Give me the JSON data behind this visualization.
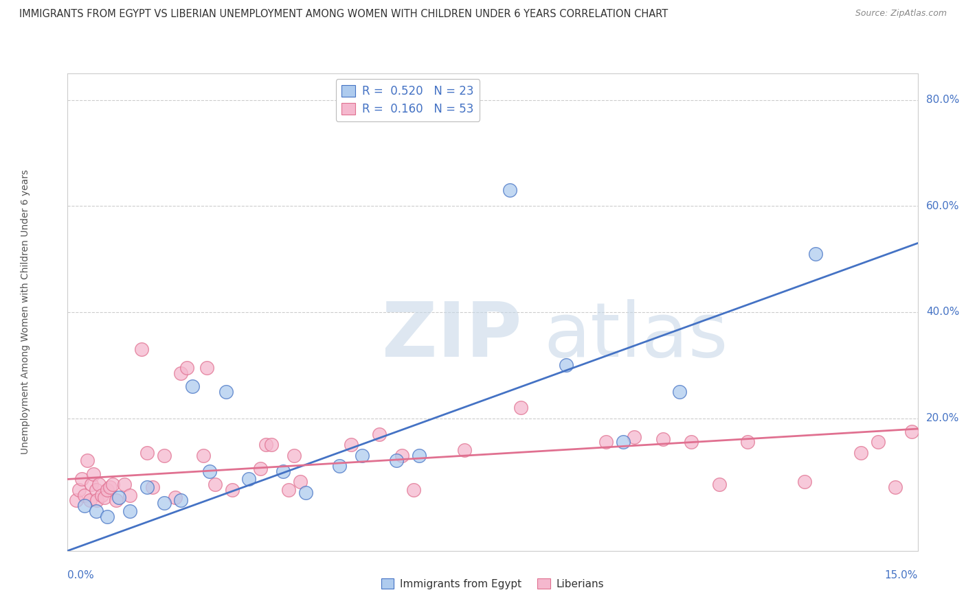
{
  "title": "IMMIGRANTS FROM EGYPT VS LIBERIAN UNEMPLOYMENT AMONG WOMEN WITH CHILDREN UNDER 6 YEARS CORRELATION CHART",
  "source": "Source: ZipAtlas.com",
  "xlabel_bottom_left": "0.0%",
  "xlabel_bottom_right": "15.0%",
  "ylabel": "Unemployment Among Women with Children Under 6 years",
  "xmin": 0.0,
  "xmax": 15.0,
  "ymin": -5.0,
  "ymax": 85.0,
  "yticks": [
    0,
    20,
    40,
    60,
    80
  ],
  "ytick_labels": [
    "",
    "20.0%",
    "40.0%",
    "60.0%",
    "80.0%"
  ],
  "legend1_r": "0.520",
  "legend1_n": "23",
  "legend2_r": "0.160",
  "legend2_n": "53",
  "blue_color": "#AECBEE",
  "pink_color": "#F5B8CE",
  "line_blue": "#4472C4",
  "line_pink": "#E07090",
  "blue_scatter": [
    [
      0.3,
      3.5
    ],
    [
      0.5,
      2.5
    ],
    [
      0.7,
      1.5
    ],
    [
      0.9,
      5.0
    ],
    [
      1.1,
      2.5
    ],
    [
      1.4,
      7.0
    ],
    [
      1.7,
      4.0
    ],
    [
      2.0,
      4.5
    ],
    [
      2.2,
      26.0
    ],
    [
      2.5,
      10.0
    ],
    [
      2.8,
      25.0
    ],
    [
      3.2,
      8.5
    ],
    [
      3.8,
      10.0
    ],
    [
      4.2,
      6.0
    ],
    [
      4.8,
      11.0
    ],
    [
      5.2,
      13.0
    ],
    [
      5.8,
      12.0
    ],
    [
      6.2,
      13.0
    ],
    [
      7.8,
      63.0
    ],
    [
      8.8,
      30.0
    ],
    [
      9.8,
      15.5
    ],
    [
      10.8,
      25.0
    ],
    [
      13.2,
      51.0
    ]
  ],
  "pink_scatter": [
    [
      0.15,
      4.5
    ],
    [
      0.2,
      6.5
    ],
    [
      0.25,
      8.5
    ],
    [
      0.3,
      5.5
    ],
    [
      0.35,
      12.0
    ],
    [
      0.4,
      4.5
    ],
    [
      0.42,
      7.5
    ],
    [
      0.45,
      9.5
    ],
    [
      0.5,
      6.5
    ],
    [
      0.52,
      4.5
    ],
    [
      0.55,
      7.5
    ],
    [
      0.6,
      5.5
    ],
    [
      0.65,
      5.0
    ],
    [
      0.7,
      6.5
    ],
    [
      0.75,
      7.0
    ],
    [
      0.8,
      7.5
    ],
    [
      0.85,
      4.5
    ],
    [
      1.0,
      7.5
    ],
    [
      1.1,
      5.5
    ],
    [
      1.3,
      33.0
    ],
    [
      1.4,
      13.5
    ],
    [
      1.5,
      7.0
    ],
    [
      1.7,
      13.0
    ],
    [
      1.9,
      5.0
    ],
    [
      2.0,
      28.5
    ],
    [
      2.1,
      29.5
    ],
    [
      2.4,
      13.0
    ],
    [
      2.45,
      29.5
    ],
    [
      2.6,
      7.5
    ],
    [
      2.9,
      6.5
    ],
    [
      3.4,
      10.5
    ],
    [
      3.5,
      15.0
    ],
    [
      3.6,
      15.0
    ],
    [
      3.9,
      6.5
    ],
    [
      4.0,
      13.0
    ],
    [
      4.1,
      8.0
    ],
    [
      5.0,
      15.0
    ],
    [
      5.5,
      17.0
    ],
    [
      5.9,
      13.0
    ],
    [
      6.1,
      6.5
    ],
    [
      7.0,
      14.0
    ],
    [
      8.0,
      22.0
    ],
    [
      9.5,
      15.5
    ],
    [
      10.0,
      16.5
    ],
    [
      10.5,
      16.0
    ],
    [
      11.0,
      15.5
    ],
    [
      11.5,
      7.5
    ],
    [
      12.0,
      15.5
    ],
    [
      13.0,
      8.0
    ],
    [
      14.0,
      13.5
    ],
    [
      14.3,
      15.5
    ],
    [
      14.6,
      7.0
    ],
    [
      14.9,
      17.5
    ]
  ],
  "blue_trend_start": [
    -5.0
  ],
  "blue_trend_end": [
    53.0
  ],
  "pink_trend_start": [
    8.5
  ],
  "pink_trend_end": [
    18.0
  ],
  "watermark_zip": "ZIP",
  "watermark_atlas": "atlas",
  "background_color": "#FFFFFF",
  "grid_color": "#CCCCCC"
}
